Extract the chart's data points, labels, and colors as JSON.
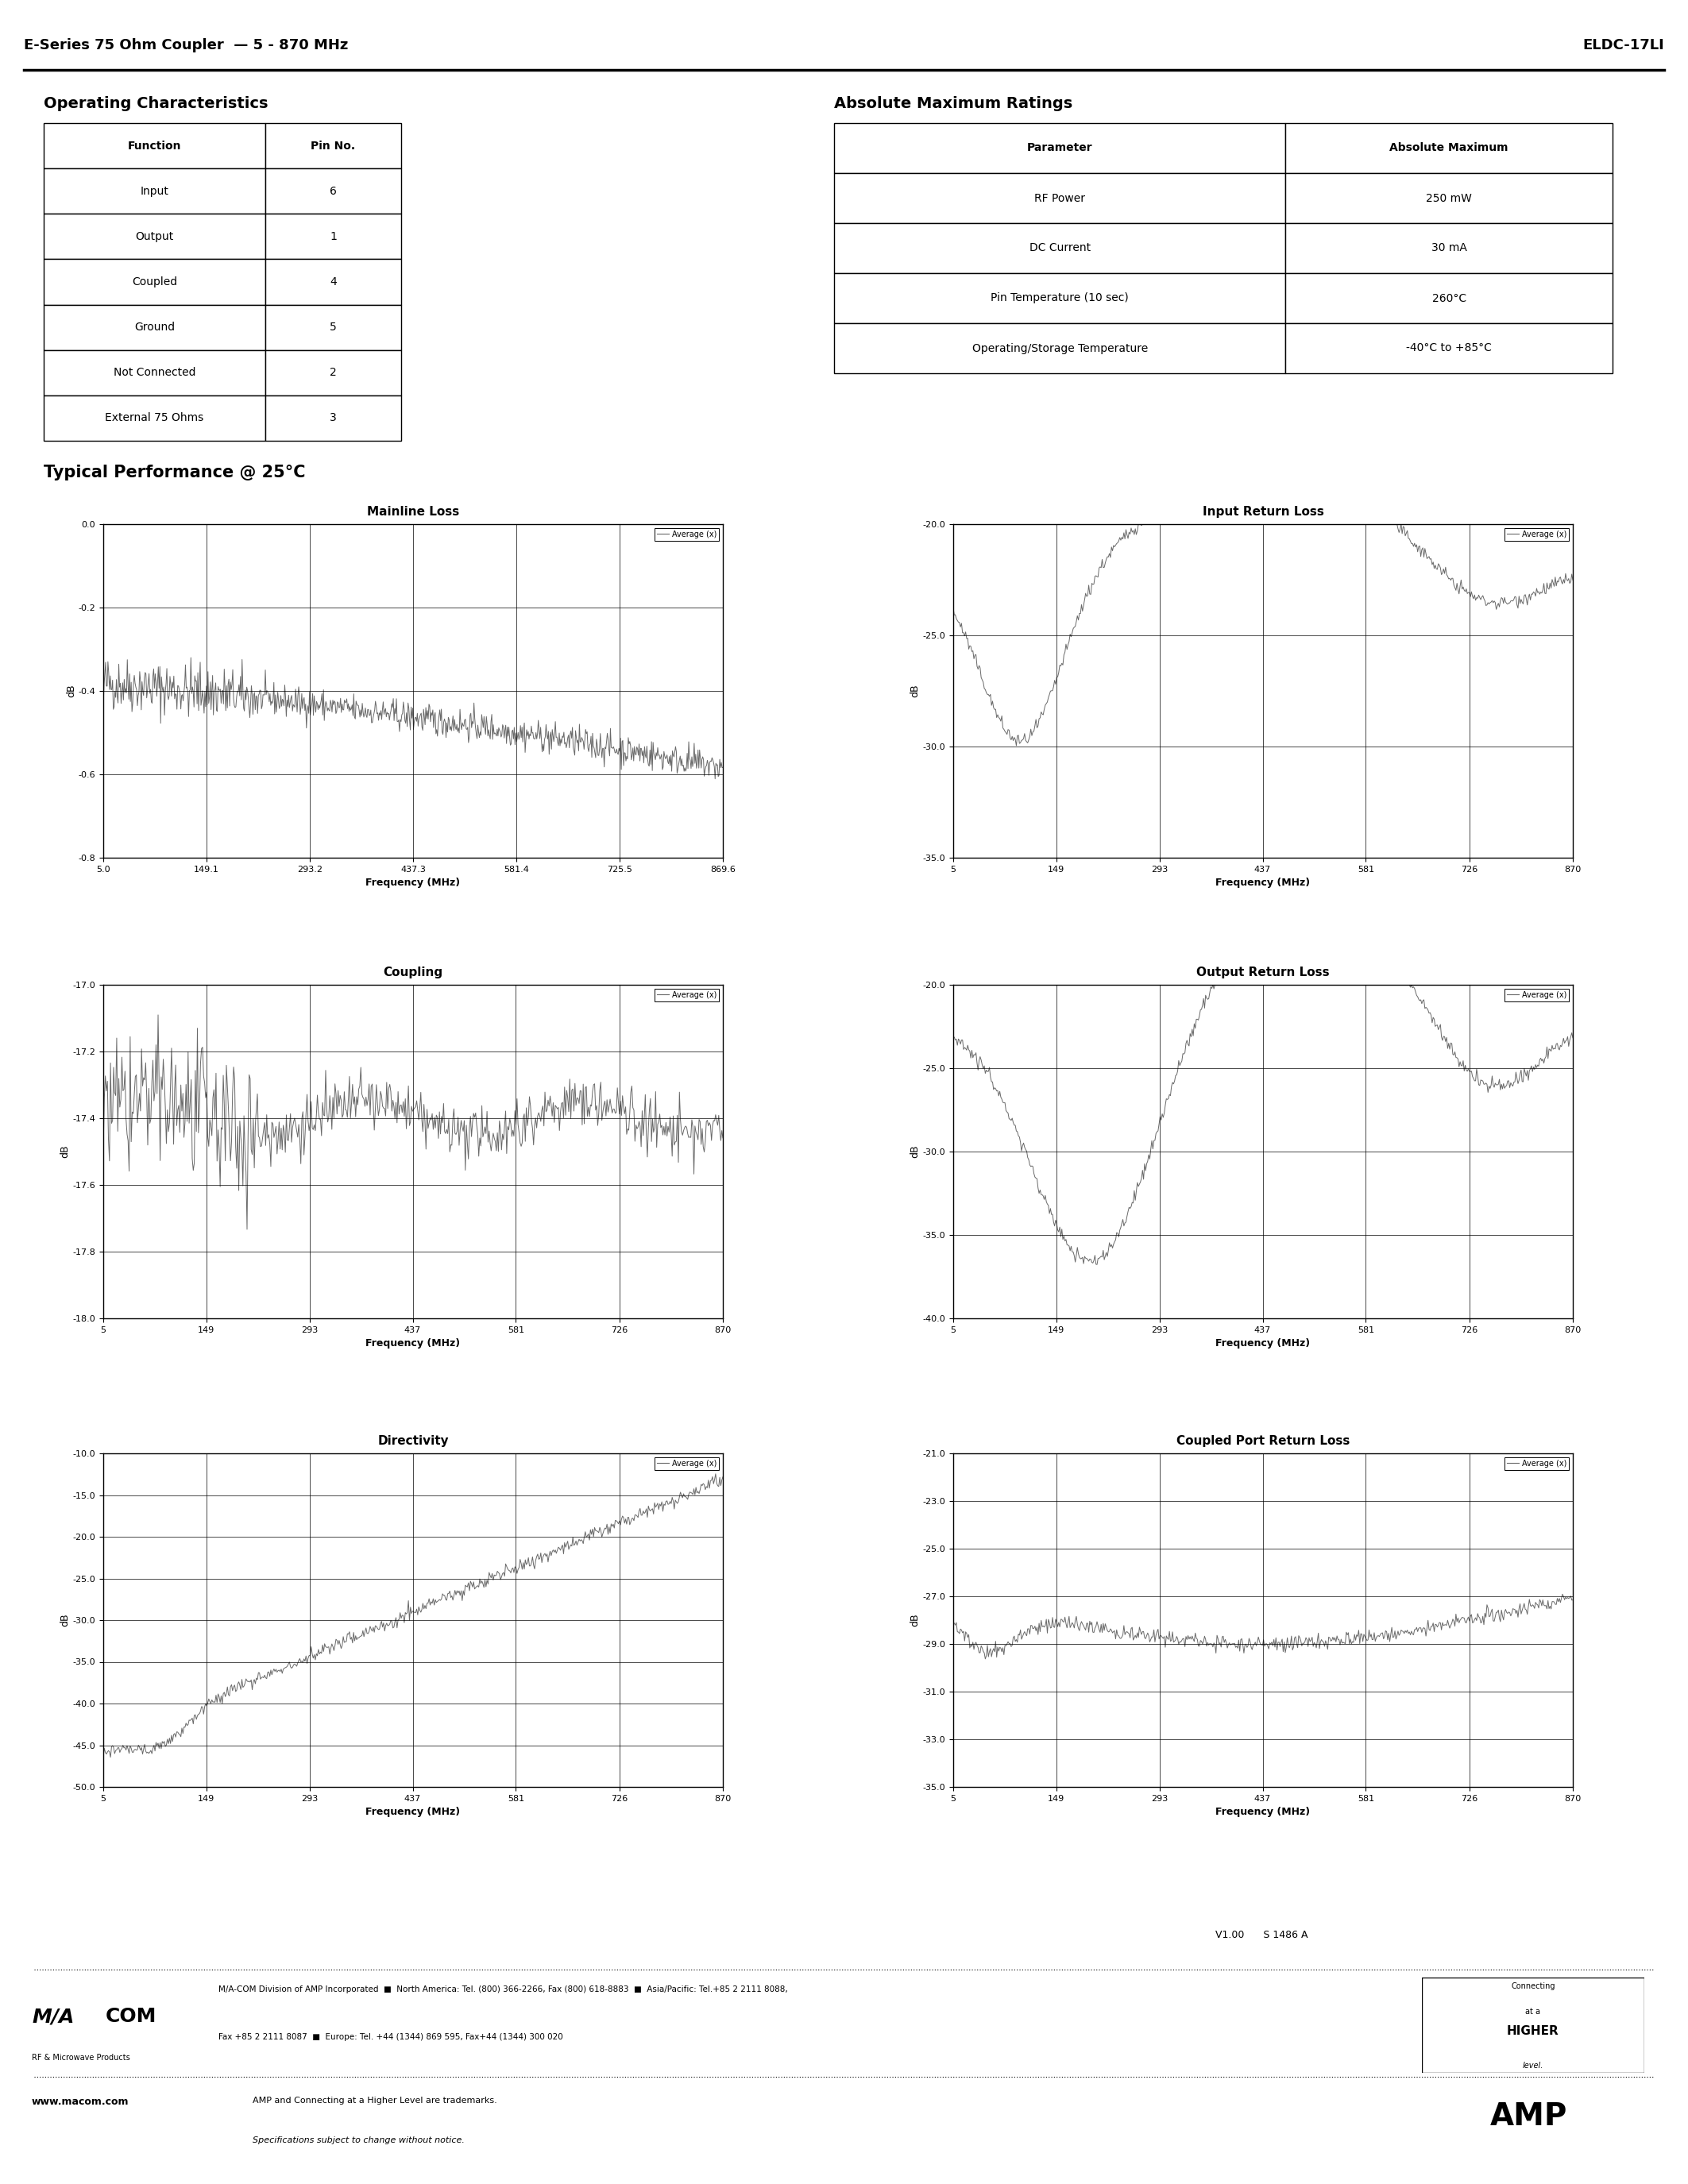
{
  "page_title_left": "E-Series 75 Ohm Coupler  — 5 - 870 MHz",
  "page_title_right": "ELDC-17LI",
  "op_char_title": "Operating Characteristics",
  "op_char_headers": [
    "Function",
    "Pin No."
  ],
  "op_char_rows": [
    [
      "Input",
      "6"
    ],
    [
      "Output",
      "1"
    ],
    [
      "Coupled",
      "4"
    ],
    [
      "Ground",
      "5"
    ],
    [
      "Not Connected",
      "2"
    ],
    [
      "External 75 Ohms",
      "3"
    ]
  ],
  "abs_max_title": "Absolute Maximum Ratings",
  "abs_max_headers": [
    "Parameter",
    "Absolute Maximum"
  ],
  "abs_max_rows": [
    [
      "RF Power",
      "250 mW"
    ],
    [
      "DC Current",
      "30 mA"
    ],
    [
      "Pin Temperature (10 sec)",
      "260°C"
    ],
    [
      "Operating/Storage Temperature",
      "-40°C to +85°C"
    ]
  ],
  "typical_perf_title": "Typical Performance @ 25°C",
  "plots": [
    {
      "title": "Mainline Loss",
      "xlabel": "Frequency (MHz)",
      "ylabel": "dB",
      "xlim": [
        5.0,
        869.6
      ],
      "ylim": [
        -0.8,
        0.0
      ],
      "xticks": [
        5.0,
        149.1,
        293.2,
        437.3,
        581.4,
        725.5,
        869.6
      ],
      "xtick_labels": [
        "5.0",
        "149.1",
        "293.2",
        "437.3",
        "581.4",
        "725.5",
        "869.6"
      ],
      "yticks": [
        0.0,
        -0.2,
        -0.4,
        -0.6,
        -0.8
      ],
      "ytick_labels": [
        "0.0",
        "-0.2",
        "-0.4",
        "-0.6",
        "-0.8"
      ],
      "legend": "Average (x)"
    },
    {
      "title": "Input Return Loss",
      "xlabel": "Frequency (MHz)",
      "ylabel": "dB",
      "xlim": [
        5,
        870
      ],
      "ylim": [
        -35.0,
        -20.0
      ],
      "xticks": [
        5,
        149,
        293,
        437,
        581,
        726,
        870
      ],
      "xtick_labels": [
        "5",
        "149",
        "293",
        "437",
        "581",
        "726",
        "870"
      ],
      "yticks": [
        -20.0,
        -25.0,
        -30.0,
        -35.0
      ],
      "ytick_labels": [
        "-20.0",
        "-25.0",
        "-30.0",
        "-35.0"
      ],
      "legend": "Average (x)"
    },
    {
      "title": "Coupling",
      "xlabel": "Frequency (MHz)",
      "ylabel": "dB",
      "xlim": [
        5,
        870
      ],
      "ylim": [
        -18.0,
        -17.0
      ],
      "xticks": [
        5,
        149,
        293,
        437,
        581,
        726,
        870
      ],
      "xtick_labels": [
        "5",
        "149",
        "293",
        "437",
        "581",
        "726",
        "870"
      ],
      "yticks": [
        -17.0,
        -17.2,
        -17.4,
        -17.6,
        -17.8,
        -18.0
      ],
      "ytick_labels": [
        "-17.0",
        "-17.2",
        "-17.4",
        "-17.6",
        "-17.8",
        "-18.0"
      ],
      "legend": "Average (x)"
    },
    {
      "title": "Output Return Loss",
      "xlabel": "Frequency (MHz)",
      "ylabel": "dB",
      "xlim": [
        5,
        870
      ],
      "ylim": [
        -40.0,
        -20.0
      ],
      "xticks": [
        5,
        149,
        293,
        437,
        581,
        726,
        870
      ],
      "xtick_labels": [
        "5",
        "149",
        "293",
        "437",
        "581",
        "726",
        "870"
      ],
      "yticks": [
        -20.0,
        -25.0,
        -30.0,
        -35.0,
        -40.0
      ],
      "ytick_labels": [
        "-20.0",
        "-25.0",
        "-30.0",
        "-35.0",
        "-40.0"
      ],
      "legend": "Average (x)"
    },
    {
      "title": "Directivity",
      "xlabel": "Frequency (MHz)",
      "ylabel": "dB",
      "xlim": [
        5,
        870
      ],
      "ylim": [
        -50.0,
        -10.0
      ],
      "xticks": [
        5,
        149,
        293,
        437,
        581,
        726,
        870
      ],
      "xtick_labels": [
        "5",
        "149",
        "293",
        "437",
        "581",
        "726",
        "870"
      ],
      "yticks": [
        -10.0,
        -15.0,
        -20.0,
        -25.0,
        -30.0,
        -35.0,
        -40.0,
        -45.0,
        -50.0
      ],
      "ytick_labels": [
        "-10.0",
        "-15.0",
        "-20.0",
        "-25.0",
        "-30.0",
        "-35.0",
        "-40.0",
        "-45.0",
        "-50.0"
      ],
      "legend": "Average (x)"
    },
    {
      "title": "Coupled Port Return Loss",
      "xlabel": "Frequency (MHz)",
      "ylabel": "dB",
      "xlim": [
        5,
        870
      ],
      "ylim": [
        -35.0,
        -21.0
      ],
      "xticks": [
        5,
        149,
        293,
        437,
        581,
        726,
        870
      ],
      "xtick_labels": [
        "5",
        "149",
        "293",
        "437",
        "581",
        "726",
        "870"
      ],
      "yticks": [
        -21.0,
        -23.0,
        -25.0,
        -27.0,
        -29.0,
        -31.0,
        -33.0,
        -35.0
      ],
      "ytick_labels": [
        "-21.0",
        "-23.0",
        "-25.0",
        "-27.0",
        "-29.0",
        "-31.0",
        "-33.0",
        "-35.0"
      ],
      "legend": "Average (x)"
    }
  ],
  "footer_version": "V1.00      S 1486 A",
  "footer_company": "M/A-COM Division of AMP Incorporated",
  "footer_na": "North America: Tel. (800) 366-2266, Fax (800) 618-8883",
  "footer_ap": "Asia/Pacific: Tel.+85 2 2111 8088,",
  "footer_fax": "Fax +85 2 2111 8087",
  "footer_eu": "Europe: Tel. +44 (1344) 869 595, Fax+44 (1344) 300 020",
  "footer_web": "www.macom.com",
  "footer_trademarks": "AMP and Connecting at a Higher Level are trademarks.",
  "footer_specs": "Specifications subject to change without notice.",
  "background": "#ffffff"
}
